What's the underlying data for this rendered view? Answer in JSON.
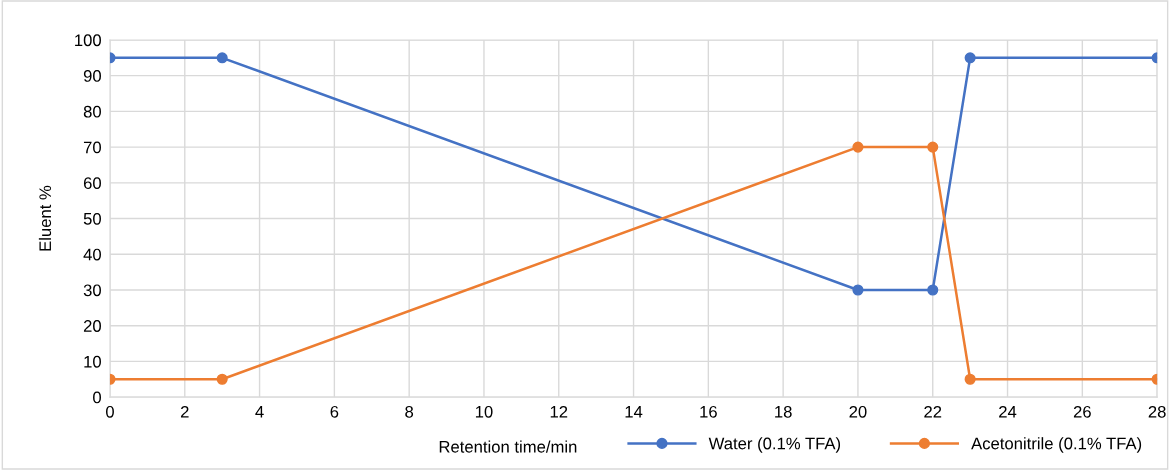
{
  "chart_data": {
    "type": "line",
    "xlabel": "Retention time/min",
    "ylabel": "Eluent %",
    "series": [
      {
        "name": "Water (0.1% TFA)",
        "color": "#4472c4",
        "x": [
          0,
          3,
          20,
          22,
          23,
          28
        ],
        "values": [
          95,
          95,
          30,
          30,
          95,
          95
        ]
      },
      {
        "name": "Acetonitrile (0.1% TFA)",
        "color": "#ed7d31",
        "x": [
          0,
          3,
          20,
          22,
          23,
          28
        ],
        "values": [
          5,
          5,
          70,
          70,
          5,
          5
        ]
      }
    ],
    "xlim": [
      0,
      28
    ],
    "xticks": [
      0,
      2,
      4,
      6,
      8,
      10,
      12,
      14,
      16,
      18,
      20,
      22,
      24,
      26,
      28
    ],
    "ylim": [
      0,
      100
    ],
    "yticks": [
      0,
      10,
      20,
      30,
      40,
      50,
      60,
      70,
      80,
      90,
      100
    ],
    "grid": true,
    "legend": "bottom right",
    "marker": "circle",
    "line_style": "solid"
  }
}
